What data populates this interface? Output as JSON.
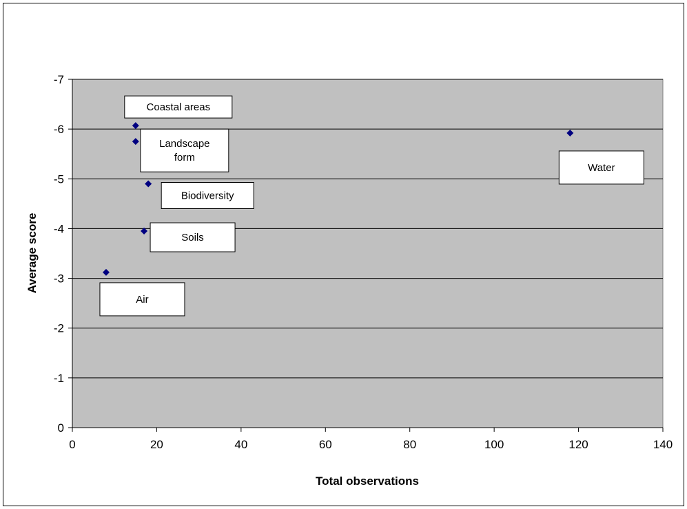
{
  "chart_data": {
    "type": "scatter",
    "title": "",
    "xlabel": "Total observations",
    "ylabel": "Average score",
    "xlim": [
      0,
      140
    ],
    "ylim": [
      0,
      -7
    ],
    "x_ticks": [
      0,
      20,
      40,
      60,
      80,
      100,
      120,
      140
    ],
    "y_ticks": [
      0,
      -1,
      -2,
      -3,
      -4,
      -5,
      -6,
      -7
    ],
    "grid": "horizontal",
    "legend": "none",
    "plot_background": "#c0c0c0",
    "marker_color": "#000080",
    "points": [
      {
        "name": "Coastal areas",
        "x": 15,
        "y": -6.07
      },
      {
        "name": "Landscape form",
        "x": 15,
        "y": -5.75
      },
      {
        "name": "Biodiversity",
        "x": 18,
        "y": -4.9
      },
      {
        "name": "Soils",
        "x": 17,
        "y": -3.95
      },
      {
        "name": "Air",
        "x": 8,
        "y": -3.12
      },
      {
        "name": "Water",
        "x": 118,
        "y": -5.92
      }
    ],
    "annotations": [
      {
        "point": "Coastal areas",
        "lines": [
          "Coastal areas"
        ]
      },
      {
        "point": "Landscape form",
        "lines": [
          "Landscape",
          "form"
        ]
      },
      {
        "point": "Biodiversity",
        "lines": [
          "Biodiversity"
        ]
      },
      {
        "point": "Soils",
        "lines": [
          "Soils"
        ]
      },
      {
        "point": "Air",
        "lines": [
          "Air"
        ]
      },
      {
        "point": "Water",
        "lines": [
          "Water"
        ]
      }
    ]
  }
}
